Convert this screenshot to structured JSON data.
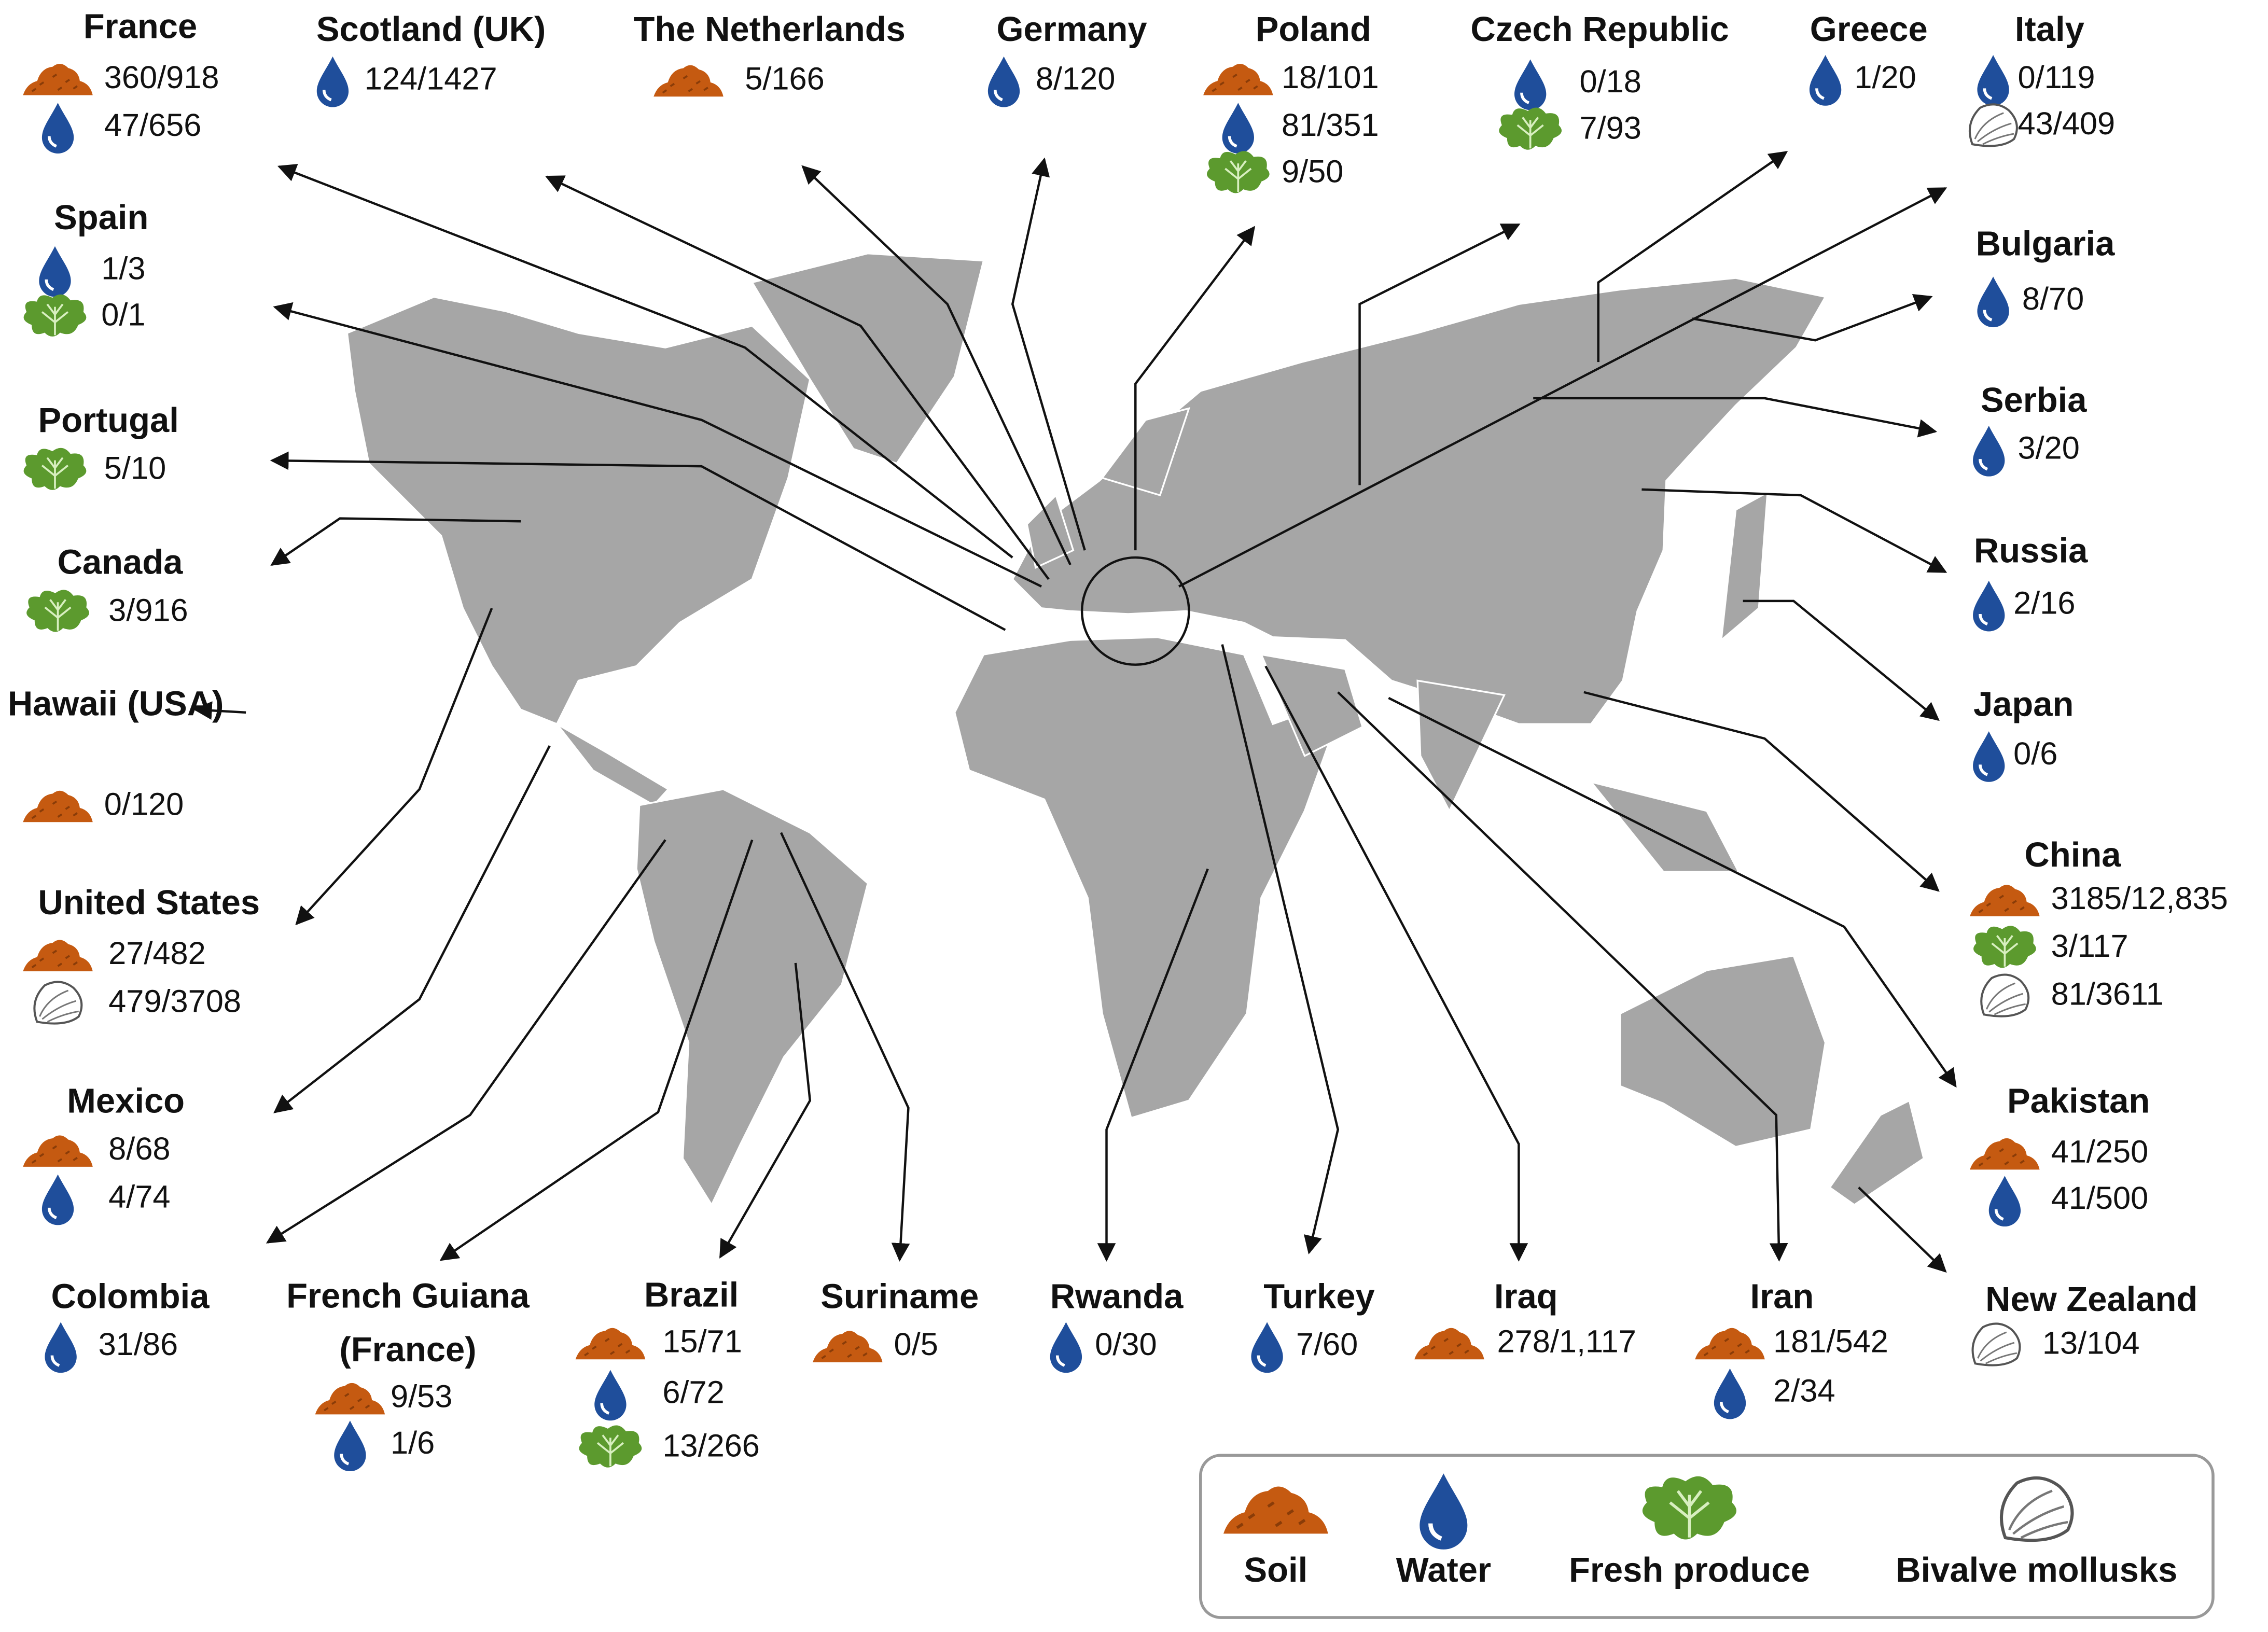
{
  "locations": [
    {
      "name": "France",
      "samples": [
        {
          "source": "soil",
          "value": "360/918"
        },
        {
          "source": "water",
          "value": "47/656"
        }
      ]
    },
    {
      "name": "Scotland (UK)",
      "samples": [
        {
          "source": "water",
          "value": "124/1427"
        }
      ]
    },
    {
      "name": "The Netherlands",
      "samples": [
        {
          "source": "soil",
          "value": "5/166"
        }
      ]
    },
    {
      "name": "Germany",
      "samples": [
        {
          "source": "water",
          "value": "8/120"
        }
      ]
    },
    {
      "name": "Poland",
      "samples": [
        {
          "source": "soil",
          "value": "18/101"
        },
        {
          "source": "water",
          "value": "81/351"
        },
        {
          "source": "produce",
          "value": "9/50"
        }
      ]
    },
    {
      "name": "Czech Republic",
      "samples": [
        {
          "source": "water",
          "value": "0/18"
        },
        {
          "source": "produce",
          "value": "7/93"
        }
      ]
    },
    {
      "name": "Greece",
      "samples": [
        {
          "source": "water",
          "value": "1/20"
        }
      ]
    },
    {
      "name": "Italy",
      "samples": [
        {
          "source": "water",
          "value": "0/119"
        },
        {
          "source": "bivalve",
          "value": "43/409"
        }
      ]
    },
    {
      "name": "Spain",
      "samples": [
        {
          "source": "water",
          "value": "1/3"
        },
        {
          "source": "produce",
          "value": "0/1"
        }
      ]
    },
    {
      "name": "Bulgaria",
      "samples": [
        {
          "source": "water",
          "value": "8/70"
        }
      ]
    },
    {
      "name": "Portugal",
      "samples": [
        {
          "source": "produce",
          "value": "5/10"
        }
      ]
    },
    {
      "name": "Serbia",
      "samples": [
        {
          "source": "water",
          "value": "3/20"
        }
      ]
    },
    {
      "name": "Russia",
      "samples": [
        {
          "source": "water",
          "value": "2/16"
        }
      ]
    },
    {
      "name": "Canada",
      "samples": [
        {
          "source": "produce",
          "value": "3/916"
        }
      ]
    },
    {
      "name": "Hawaii (USA)",
      "samples": [
        {
          "source": "soil",
          "value": "0/120"
        }
      ]
    },
    {
      "name": "United States",
      "samples": [
        {
          "source": "soil",
          "value": "27/482"
        },
        {
          "source": "bivalve",
          "value": "479/3708"
        }
      ]
    },
    {
      "name": "Japan",
      "samples": [
        {
          "source": "water",
          "value": "0/6"
        }
      ]
    },
    {
      "name": "China",
      "samples": [
        {
          "source": "soil",
          "value": "3185/12,835"
        },
        {
          "source": "produce",
          "value": "3/117"
        },
        {
          "source": "bivalve",
          "value": "81/3611"
        }
      ]
    },
    {
      "name": "Mexico",
      "samples": [
        {
          "source": "soil",
          "value": "8/68"
        },
        {
          "source": "water",
          "value": "4/74"
        }
      ]
    },
    {
      "name": "Pakistan",
      "samples": [
        {
          "source": "soil",
          "value": "41/250"
        },
        {
          "source": "water",
          "value": "41/500"
        }
      ]
    },
    {
      "name": "Colombia",
      "samples": [
        {
          "source": "water",
          "value": "31/86"
        }
      ]
    },
    {
      "name": "French Guiana (France)",
      "samples": [
        {
          "source": "soil",
          "value": "9/53"
        },
        {
          "source": "water",
          "value": "1/6"
        }
      ]
    },
    {
      "name": "Brazil",
      "samples": [
        {
          "source": "soil",
          "value": "15/71"
        },
        {
          "source": "water",
          "value": "6/72"
        },
        {
          "source": "produce",
          "value": "13/266"
        }
      ]
    },
    {
      "name": "Suriname",
      "samples": [
        {
          "source": "soil",
          "value": "0/5"
        }
      ]
    },
    {
      "name": "Rwanda",
      "samples": [
        {
          "source": "water",
          "value": "0/30"
        }
      ]
    },
    {
      "name": "Turkey",
      "samples": [
        {
          "source": "water",
          "value": "7/60"
        }
      ]
    },
    {
      "name": "Iraq",
      "samples": [
        {
          "source": "soil",
          "value": "278/1,117"
        }
      ]
    },
    {
      "name": "Iran",
      "samples": [
        {
          "source": "soil",
          "value": "181/542"
        },
        {
          "source": "water",
          "value": "2/34"
        }
      ]
    },
    {
      "name": "New Zealand",
      "samples": [
        {
          "source": "bivalve",
          "value": "13/104"
        }
      ]
    }
  ],
  "legend": [
    {
      "source": "soil",
      "label": "Soil"
    },
    {
      "source": "water",
      "label": "Water"
    },
    {
      "source": "produce",
      "label": "Fresh produce"
    },
    {
      "source": "bivalve",
      "label": "Bivalve mollusks"
    }
  ]
}
